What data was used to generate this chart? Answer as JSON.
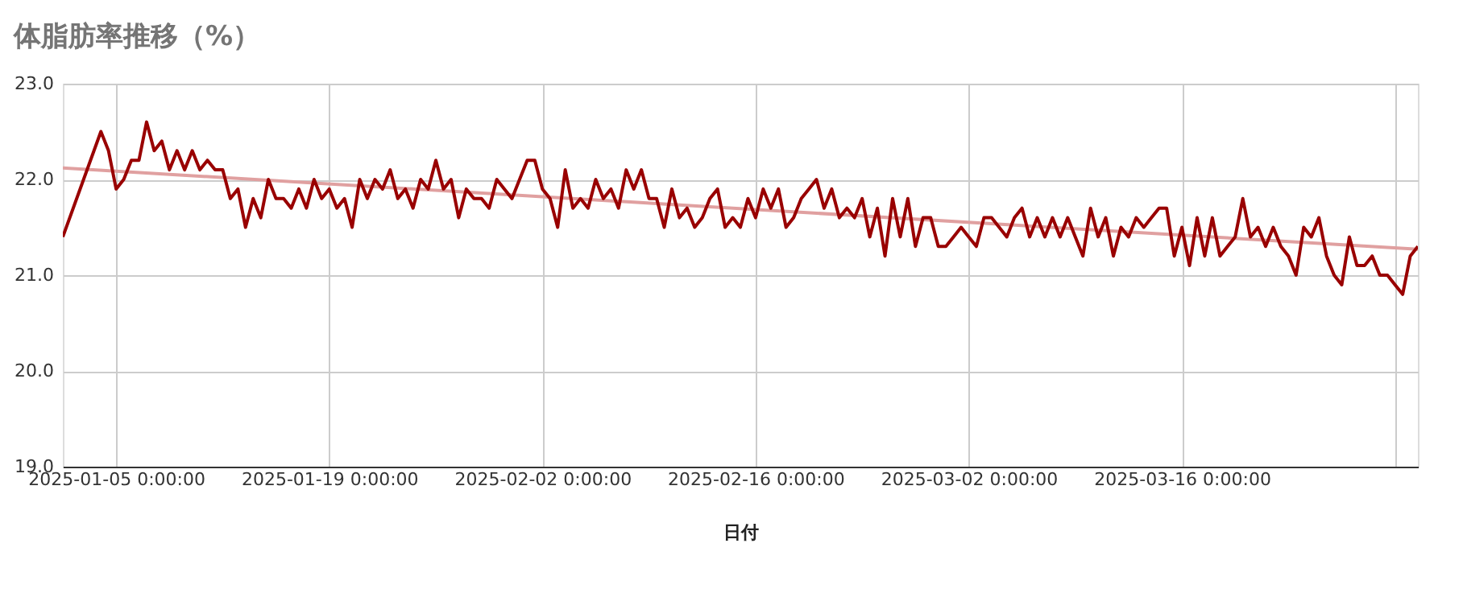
{
  "chart_data": {
    "type": "line",
    "title": "体脂肪率推移（%）",
    "xlabel": "日付",
    "grid": true,
    "xlim": [
      "2025-01-01T12:00",
      "2025-03-31T12:00"
    ],
    "xticks": [
      {
        "value": "2025-01-05T00:00",
        "label": "2025-01-05 0:00:00"
      },
      {
        "value": "2025-01-19T00:00",
        "label": "2025-01-19 0:00:00"
      },
      {
        "value": "2025-02-02T00:00",
        "label": "2025-02-02 0:00:00"
      },
      {
        "value": "2025-02-16T00:00",
        "label": "2025-02-16 0:00:00"
      },
      {
        "value": "2025-03-02T00:00",
        "label": "2025-03-02 0:00:00"
      },
      {
        "value": "2025-03-16T00:00",
        "label": "2025-03-16 0:00:00"
      },
      {
        "value": "2025-03-30T00:00",
        "label": null
      }
    ],
    "ylim": [
      19,
      23
    ],
    "yticks": [
      {
        "value": 19,
        "label": "19.0"
      },
      {
        "value": 20,
        "label": "20.0"
      },
      {
        "value": 21,
        "label": "21.0"
      },
      {
        "value": 22,
        "label": "22.0"
      },
      {
        "value": 23,
        "label": "23.0"
      }
    ],
    "series": [
      {
        "color": "#990000",
        "x": [
          "2025-01-01T12:00",
          "2025-01-04T00:00",
          "2025-01-04T12:00",
          "2025-01-05T00:00",
          "2025-01-05T12:00",
          "2025-01-06T00:00",
          "2025-01-06T12:00",
          "2025-01-07T00:00",
          "2025-01-07T12:00",
          "2025-01-08T00:00",
          "2025-01-08T12:00",
          "2025-01-09T00:00",
          "2025-01-09T12:00",
          "2025-01-10T00:00",
          "2025-01-10T12:00",
          "2025-01-11T00:00",
          "2025-01-11T12:00",
          "2025-01-12T00:00",
          "2025-01-12T12:00",
          "2025-01-13T00:00",
          "2025-01-13T12:00",
          "2025-01-14T00:00",
          "2025-01-14T12:00",
          "2025-01-15T00:00",
          "2025-01-15T12:00",
          "2025-01-16T00:00",
          "2025-01-16T12:00",
          "2025-01-17T00:00",
          "2025-01-17T12:00",
          "2025-01-18T00:00",
          "2025-01-18T12:00",
          "2025-01-19T00:00",
          "2025-01-19T12:00",
          "2025-01-20T00:00",
          "2025-01-20T12:00",
          "2025-01-21T00:00",
          "2025-01-21T12:00",
          "2025-01-22T00:00",
          "2025-01-22T12:00",
          "2025-01-23T00:00",
          "2025-01-23T12:00",
          "2025-01-24T00:00",
          "2025-01-24T12:00",
          "2025-01-25T00:00",
          "2025-01-25T12:00",
          "2025-01-26T00:00",
          "2025-01-26T12:00",
          "2025-01-27T00:00",
          "2025-01-27T12:00",
          "2025-01-28T00:00",
          "2025-01-28T12:00",
          "2025-01-29T00:00",
          "2025-01-29T12:00",
          "2025-01-30T00:00",
          "2025-01-30T12:00",
          "2025-01-31T00:00",
          "2025-01-31T12:00",
          "2025-02-01T00:00",
          "2025-02-01T12:00",
          "2025-02-02T00:00",
          "2025-02-02T12:00",
          "2025-02-03T00:00",
          "2025-02-03T12:00",
          "2025-02-04T00:00",
          "2025-02-04T12:00",
          "2025-02-05T00:00",
          "2025-02-05T12:00",
          "2025-02-06T00:00",
          "2025-02-06T12:00",
          "2025-02-07T00:00",
          "2025-02-07T12:00",
          "2025-02-08T00:00",
          "2025-02-08T12:00",
          "2025-02-09T00:00",
          "2025-02-09T12:00",
          "2025-02-10T00:00",
          "2025-02-10T12:00",
          "2025-02-11T00:00",
          "2025-02-11T12:00",
          "2025-02-12T00:00",
          "2025-02-12T12:00",
          "2025-02-13T00:00",
          "2025-02-13T12:00",
          "2025-02-14T00:00",
          "2025-02-14T12:00",
          "2025-02-15T00:00",
          "2025-02-15T12:00",
          "2025-02-16T00:00",
          "2025-02-16T12:00",
          "2025-02-17T00:00",
          "2025-02-17T12:00",
          "2025-02-18T00:00",
          "2025-02-18T12:00",
          "2025-02-19T00:00",
          "2025-02-19T12:00",
          "2025-02-20T00:00",
          "2025-02-20T12:00",
          "2025-02-21T00:00",
          "2025-02-21T12:00",
          "2025-02-22T00:00",
          "2025-02-22T12:00",
          "2025-02-23T00:00",
          "2025-02-23T12:00",
          "2025-02-24T00:00",
          "2025-02-24T12:00",
          "2025-02-25T00:00",
          "2025-02-25T12:00",
          "2025-02-26T00:00",
          "2025-02-26T12:00",
          "2025-02-27T00:00",
          "2025-02-27T12:00",
          "2025-02-28T00:00",
          "2025-02-28T12:00",
          "2025-03-01T00:00",
          "2025-03-01T12:00",
          "2025-03-02T00:00",
          "2025-03-02T12:00",
          "2025-03-03T00:00",
          "2025-03-03T12:00",
          "2025-03-04T00:00",
          "2025-03-04T12:00",
          "2025-03-05T00:00",
          "2025-03-05T12:00",
          "2025-03-06T00:00",
          "2025-03-06T12:00",
          "2025-03-07T00:00",
          "2025-03-07T12:00",
          "2025-03-08T00:00",
          "2025-03-08T12:00",
          "2025-03-09T00:00",
          "2025-03-09T12:00",
          "2025-03-10T00:00",
          "2025-03-10T12:00",
          "2025-03-11T00:00",
          "2025-03-11T12:00",
          "2025-03-12T00:00",
          "2025-03-12T12:00",
          "2025-03-13T00:00",
          "2025-03-13T12:00",
          "2025-03-14T00:00",
          "2025-03-14T12:00",
          "2025-03-15T00:00",
          "2025-03-15T12:00",
          "2025-03-16T00:00",
          "2025-03-16T12:00",
          "2025-03-17T00:00",
          "2025-03-17T12:00",
          "2025-03-18T00:00",
          "2025-03-18T12:00",
          "2025-03-19T00:00",
          "2025-03-19T12:00",
          "2025-03-20T00:00",
          "2025-03-20T12:00",
          "2025-03-21T00:00",
          "2025-03-21T12:00",
          "2025-03-22T00:00",
          "2025-03-22T12:00",
          "2025-03-23T00:00",
          "2025-03-23T12:00",
          "2025-03-24T00:00",
          "2025-03-24T12:00",
          "2025-03-25T00:00",
          "2025-03-25T12:00",
          "2025-03-26T00:00",
          "2025-03-26T12:00",
          "2025-03-27T00:00",
          "2025-03-27T12:00",
          "2025-03-28T00:00",
          "2025-03-28T12:00",
          "2025-03-29T00:00",
          "2025-03-29T12:00",
          "2025-03-30T00:00",
          "2025-03-30T12:00",
          "2025-03-31T00:00",
          "2025-03-31T12:00"
        ],
        "values": [
          21.4,
          22.5,
          22.3,
          21.9,
          22.0,
          22.2,
          22.2,
          22.6,
          22.3,
          22.4,
          22.1,
          22.3,
          22.1,
          22.3,
          22.1,
          22.2,
          22.1,
          22.1,
          21.8,
          21.9,
          21.5,
          21.8,
          21.6,
          22.0,
          21.8,
          21.8,
          21.7,
          21.9,
          21.7,
          22.0,
          21.8,
          21.9,
          21.7,
          21.8,
          21.5,
          22.0,
          21.8,
          22.0,
          21.9,
          22.1,
          21.8,
          21.9,
          21.7,
          22.0,
          21.9,
          22.2,
          21.9,
          22.0,
          21.6,
          21.9,
          21.8,
          21.8,
          21.7,
          22.0,
          21.9,
          21.8,
          22.0,
          22.2,
          22.2,
          21.9,
          21.8,
          21.5,
          22.1,
          21.7,
          21.8,
          21.7,
          22.0,
          21.8,
          21.9,
          21.7,
          22.1,
          21.9,
          22.1,
          21.8,
          21.8,
          21.5,
          21.9,
          21.6,
          21.7,
          21.5,
          21.6,
          21.8,
          21.9,
          21.5,
          21.6,
          21.5,
          21.8,
          21.6,
          21.9,
          21.7,
          21.9,
          21.5,
          21.6,
          21.8,
          21.9,
          22.0,
          21.7,
          21.9,
          21.6,
          21.7,
          21.6,
          21.8,
          21.4,
          21.7,
          21.2,
          21.8,
          21.4,
          21.8,
          21.3,
          21.6,
          21.6,
          21.3,
          21.3,
          21.4,
          21.5,
          21.4,
          21.3,
          21.6,
          21.6,
          21.5,
          21.4,
          21.6,
          21.7,
          21.4,
          21.6,
          21.4,
          21.6,
          21.4,
          21.6,
          21.4,
          21.2,
          21.7,
          21.4,
          21.6,
          21.2,
          21.5,
          21.4,
          21.6,
          21.5,
          21.6,
          21.7,
          21.7,
          21.2,
          21.5,
          21.1,
          21.6,
          21.2,
          21.6,
          21.2,
          21.3,
          21.4,
          21.8,
          21.4,
          21.5,
          21.3,
          21.5,
          21.3,
          21.2,
          21.0,
          21.5,
          21.4,
          21.6,
          21.2,
          21.0,
          20.9,
          21.4,
          21.1,
          21.1,
          21.2,
          21.0,
          21.0,
          20.9,
          20.8,
          21.2,
          21.3
        ]
      },
      {
        "color": "#e0a0a0",
        "x": [
          "2025-01-01T12:00",
          "2025-03-31T12:00"
        ],
        "values": [
          22.12,
          21.27
        ]
      }
    ]
  }
}
